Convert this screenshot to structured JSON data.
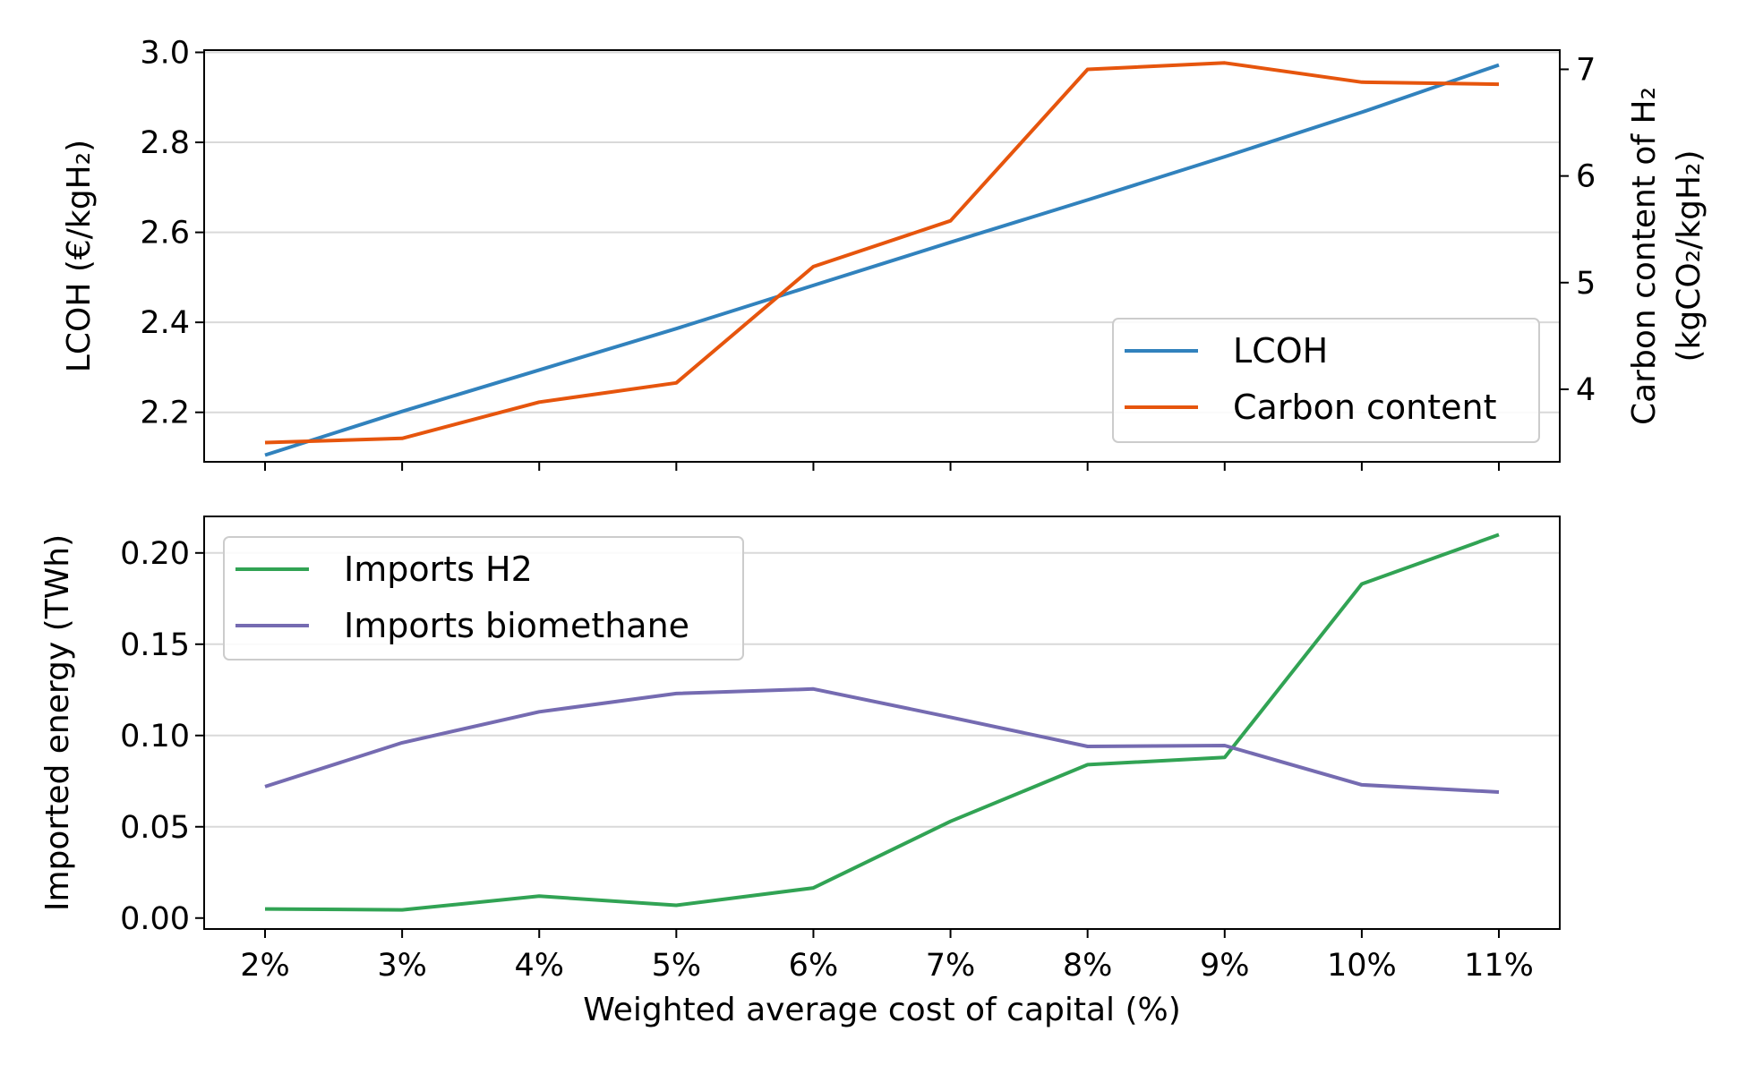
{
  "chart_data": [
    {
      "type": "line",
      "x": [
        "2%",
        "3%",
        "4%",
        "5%",
        "6%",
        "7%",
        "8%",
        "9%",
        "10%",
        "11%"
      ],
      "ylabel_left": "LCOH (€/kgH₂)",
      "ylabel_right_line1": "Carbon content of H₂",
      "ylabel_right_line2": "(kgCO₂/kgH₂)",
      "ylim_left": [
        2.09,
        3.005
      ],
      "ylim_right": [
        3.32,
        7.18
      ],
      "yticks_left": [
        "2.2",
        "2.4",
        "2.6",
        "2.8",
        "3.0"
      ],
      "yticks_right": [
        "4",
        "5",
        "6",
        "7"
      ],
      "grid": true,
      "legend": "lower-right",
      "series": [
        {
          "name": "LCOH",
          "axis": "left",
          "color": "#3182bd",
          "values": [
            2.105,
            2.202,
            2.294,
            2.386,
            2.482,
            2.578,
            2.672,
            2.768,
            2.867,
            2.972
          ]
        },
        {
          "name": "Carbon content",
          "axis": "right",
          "color": "#e6550d",
          "values": [
            3.5,
            3.54,
            3.88,
            4.06,
            5.15,
            5.58,
            7.0,
            7.06,
            6.88,
            6.86
          ]
        }
      ]
    },
    {
      "type": "line",
      "x": [
        "2%",
        "3%",
        "4%",
        "5%",
        "6%",
        "7%",
        "8%",
        "9%",
        "10%",
        "11%"
      ],
      "xlabel": "Weighted average cost of capital (%)",
      "ylabel": "Imported energy (TWh)",
      "ylim": [
        -0.006,
        0.22
      ],
      "yticks": [
        "0.00",
        "0.05",
        "0.10",
        "0.15",
        "0.20"
      ],
      "grid": true,
      "legend": "upper-left",
      "series": [
        {
          "name": "Imports H2",
          "color": "#31a354",
          "values": [
            0.005,
            0.0045,
            0.012,
            0.007,
            0.0165,
            0.053,
            0.084,
            0.088,
            0.183,
            0.21
          ]
        },
        {
          "name": "Imports biomethane",
          "color": "#756bb1",
          "values": [
            0.072,
            0.096,
            0.113,
            0.123,
            0.1255,
            0.11,
            0.094,
            0.0945,
            0.073,
            0.069
          ]
        }
      ]
    }
  ]
}
